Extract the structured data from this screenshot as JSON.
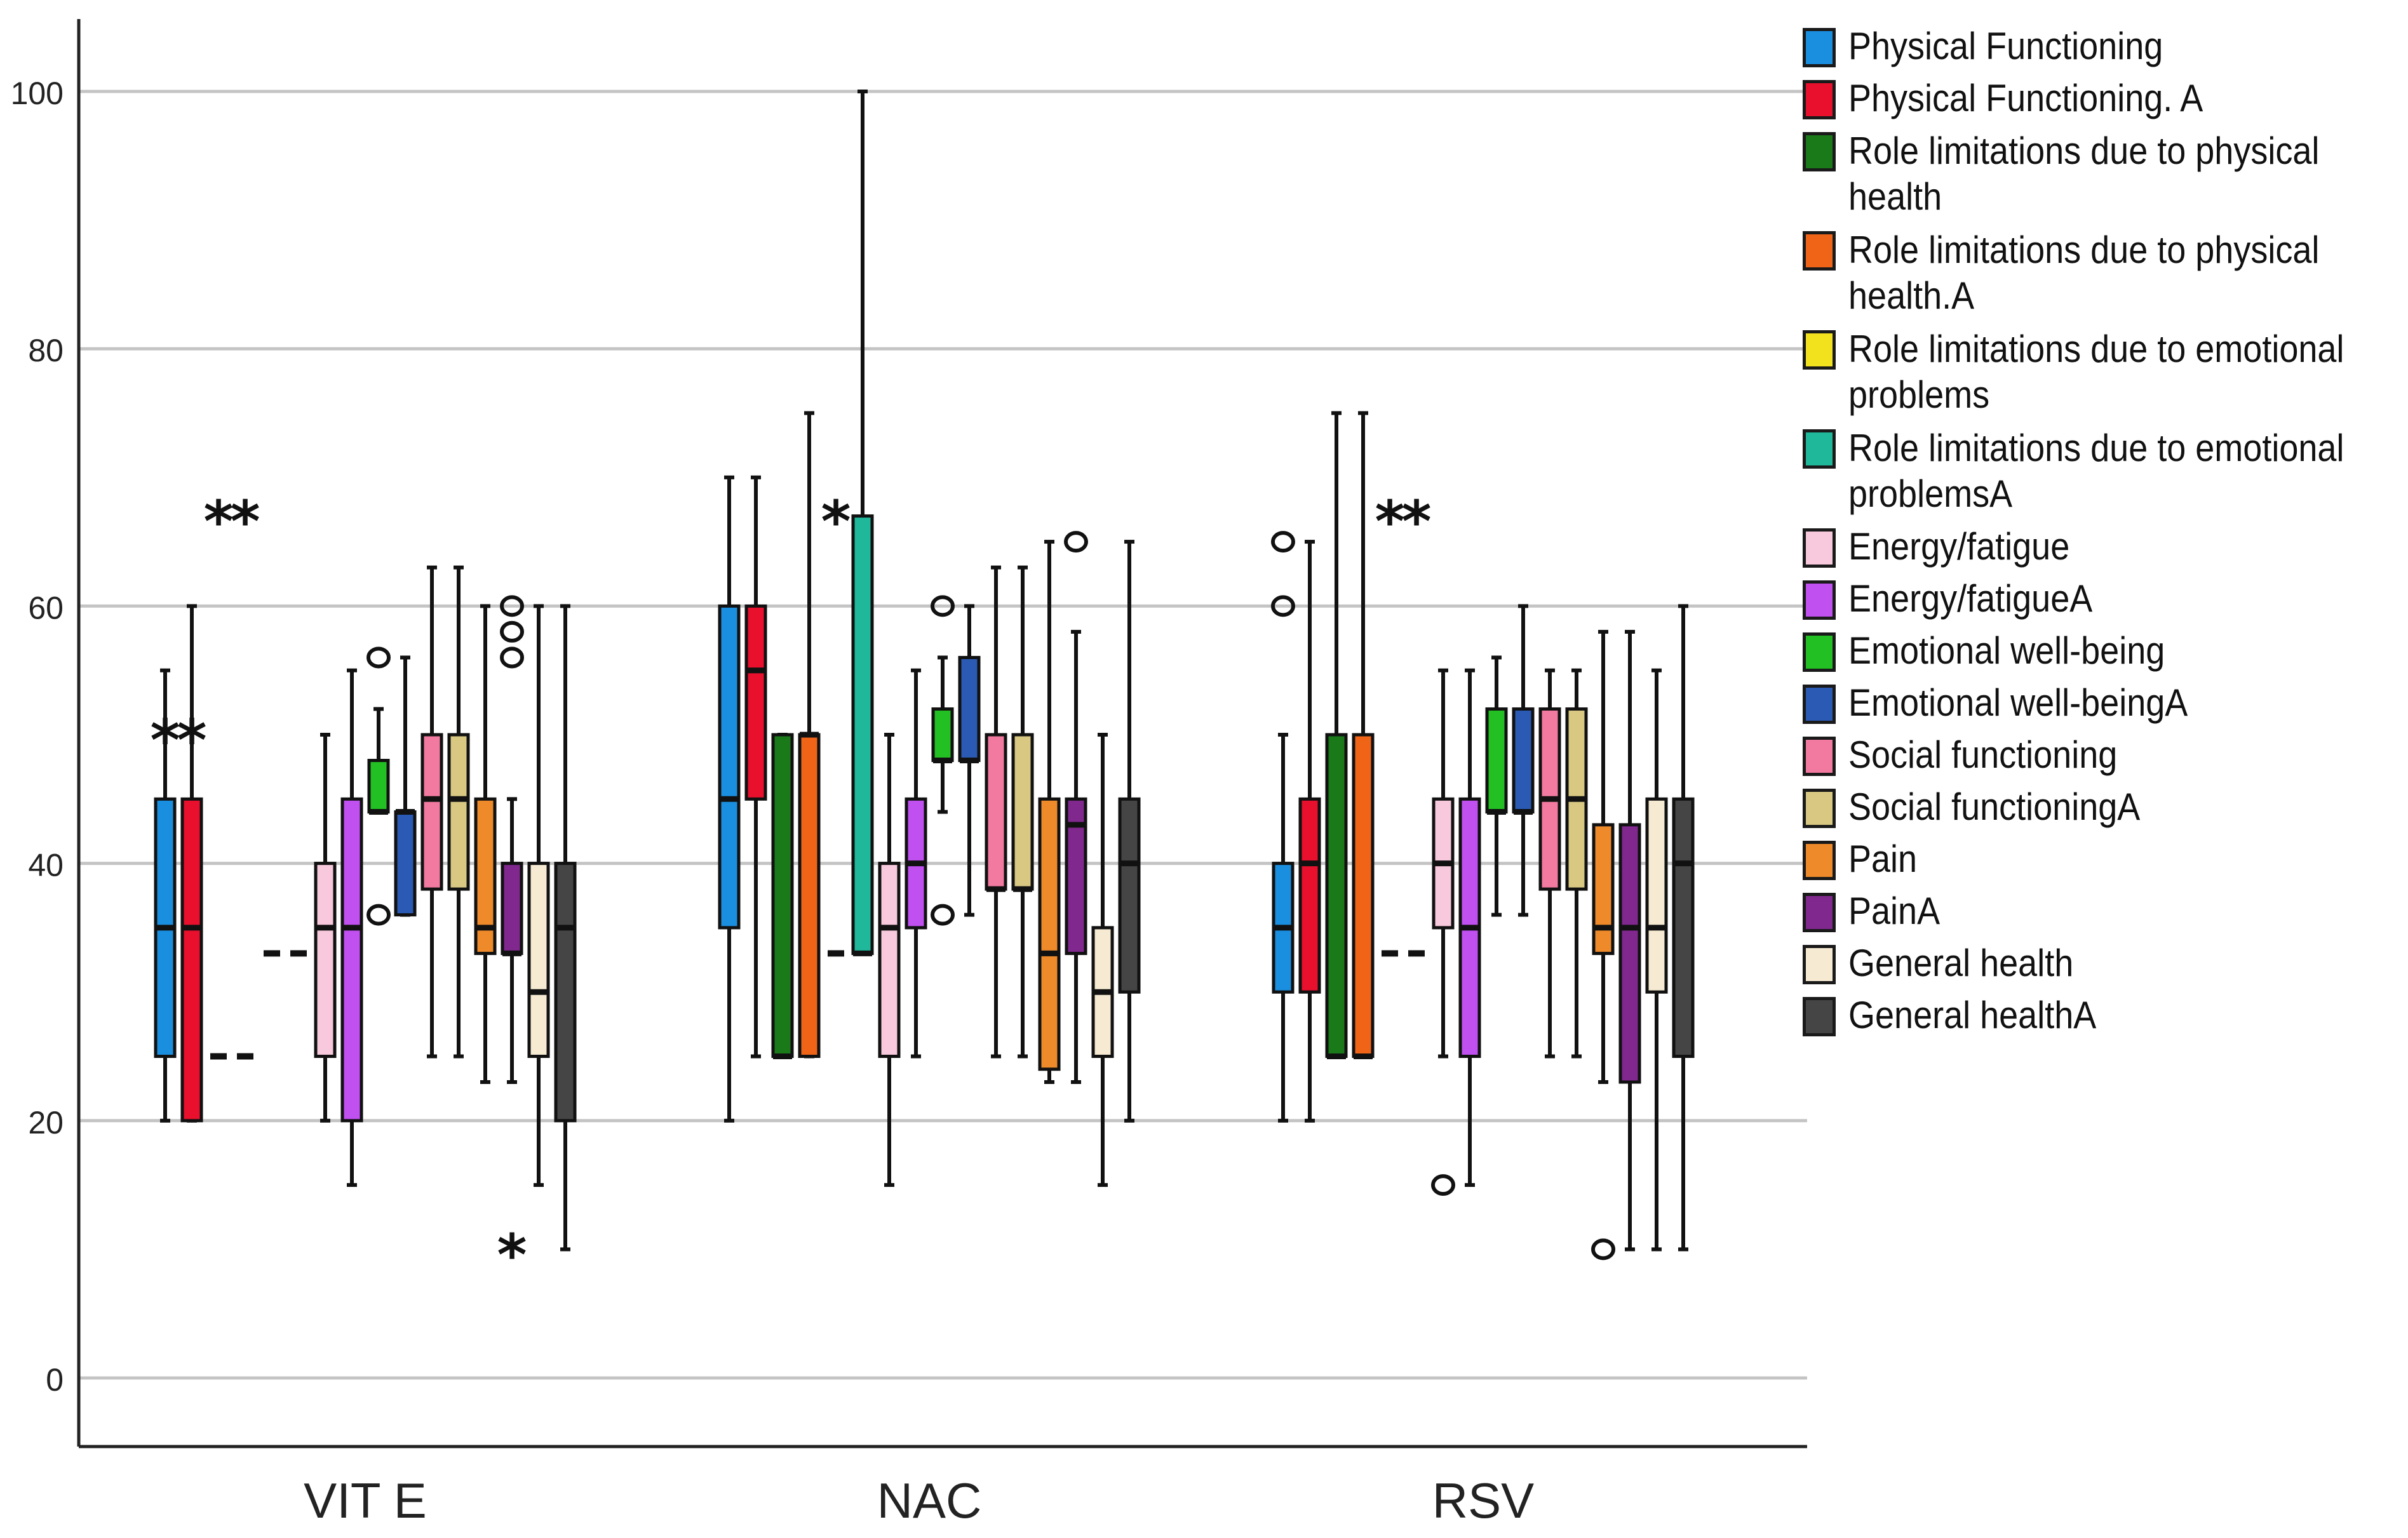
{
  "chart_data": {
    "type": "box",
    "title": "",
    "xlabel": "",
    "ylabel": "",
    "ylim": [
      -5,
      105
    ],
    "yticks": [
      0,
      20,
      40,
      60,
      80,
      100
    ],
    "grid": true,
    "legend_position": "right",
    "categories": [
      "VIT E",
      "NAC",
      "RSV"
    ],
    "series": [
      {
        "name": "Physical Functioning",
        "color": "#1a8fe0"
      },
      {
        "name": "Physical Functioning. A",
        "color": "#e8102c"
      },
      {
        "name": "Role limitations due to physical health",
        "color": "#1a7a1a"
      },
      {
        "name": "Role limitations due to physical health.A",
        "color": "#f06418"
      },
      {
        "name": "Role limitations due to emotional problems",
        "color": "#f2e21e"
      },
      {
        "name": "Role limitations due to emotional problemsA",
        "color": "#20b89a"
      },
      {
        "name": "Energy/fatigue",
        "color": "#f8c8dc"
      },
      {
        "name": "Energy/fatigueA",
        "color": "#c050f0"
      },
      {
        "name": "Emotional well-being",
        "color": "#22c022"
      },
      {
        "name": "Emotional well-beingA",
        "color": "#2a5ab4"
      },
      {
        "name": "Social functioning",
        "color": "#f27aa0"
      },
      {
        "name": "Social functioningA",
        "color": "#d8c882"
      },
      {
        "name": "Pain",
        "color": "#ee8a2a"
      },
      {
        "name": "PainA",
        "color": "#80288e"
      },
      {
        "name": "General health",
        "color": "#f6ead2"
      },
      {
        "name": "General healthA",
        "color": "#454545"
      }
    ],
    "boxes": [
      {
        "group": 0,
        "series": 0,
        "min": 20,
        "q1": 25,
        "median": 35,
        "q3": 45,
        "max": 55
      },
      {
        "group": 0,
        "series": 1,
        "min": 20,
        "q1": 20,
        "median": 35,
        "q3": 45,
        "max": 60
      },
      {
        "group": 0,
        "series": 2,
        "flat": 25
      },
      {
        "group": 0,
        "series": 3,
        "flat": 25
      },
      {
        "group": 0,
        "series": 4,
        "flat": 33
      },
      {
        "group": 0,
        "series": 5,
        "flat": 33
      },
      {
        "group": 0,
        "series": 6,
        "min": 20,
        "q1": 25,
        "median": 35,
        "q3": 40,
        "max": 50
      },
      {
        "group": 0,
        "series": 7,
        "min": 15,
        "q1": 20,
        "median": 35,
        "q3": 45,
        "max": 55
      },
      {
        "group": 0,
        "series": 8,
        "min": 44,
        "q1": 44,
        "median": 44,
        "q3": 48,
        "max": 52
      },
      {
        "group": 0,
        "series": 9,
        "min": 36,
        "q1": 36,
        "median": 44,
        "q3": 44,
        "max": 56
      },
      {
        "group": 0,
        "series": 10,
        "min": 25,
        "q1": 38,
        "median": 45,
        "q3": 50,
        "max": 63
      },
      {
        "group": 0,
        "series": 11,
        "min": 25,
        "q1": 38,
        "median": 45,
        "q3": 50,
        "max": 63
      },
      {
        "group": 0,
        "series": 12,
        "min": 23,
        "q1": 33,
        "median": 35,
        "q3": 45,
        "max": 60
      },
      {
        "group": 0,
        "series": 13,
        "min": 23,
        "q1": 33,
        "median": 33,
        "q3": 40,
        "max": 45
      },
      {
        "group": 0,
        "series": 14,
        "min": 15,
        "q1": 25,
        "median": 30,
        "q3": 40,
        "max": 60
      },
      {
        "group": 0,
        "series": 15,
        "min": 10,
        "q1": 20,
        "median": 35,
        "q3": 40,
        "max": 60
      },
      {
        "group": 1,
        "series": 0,
        "min": 20,
        "q1": 35,
        "median": 45,
        "q3": 60,
        "max": 70
      },
      {
        "group": 1,
        "series": 1,
        "min": 25,
        "q1": 45,
        "median": 55,
        "q3": 60,
        "max": 70
      },
      {
        "group": 1,
        "series": 2,
        "min": 25,
        "q1": 25,
        "median": 25,
        "q3": 50,
        "max": 50
      },
      {
        "group": 1,
        "series": 3,
        "min": 25,
        "q1": 25,
        "median": 50,
        "q3": 50,
        "max": 75
      },
      {
        "group": 1,
        "series": 4,
        "flat": 33
      },
      {
        "group": 1,
        "series": 5,
        "min": 33,
        "q1": 33,
        "median": 33,
        "q3": 67,
        "max": 100
      },
      {
        "group": 1,
        "series": 6,
        "min": 15,
        "q1": 25,
        "median": 35,
        "q3": 40,
        "max": 50
      },
      {
        "group": 1,
        "series": 7,
        "min": 25,
        "q1": 35,
        "median": 40,
        "q3": 45,
        "max": 55
      },
      {
        "group": 1,
        "series": 8,
        "min": 44,
        "q1": 48,
        "median": 48,
        "q3": 52,
        "max": 56
      },
      {
        "group": 1,
        "series": 9,
        "min": 36,
        "q1": 48,
        "median": 48,
        "q3": 56,
        "max": 60
      },
      {
        "group": 1,
        "series": 10,
        "min": 25,
        "q1": 38,
        "median": 38,
        "q3": 50,
        "max": 63
      },
      {
        "group": 1,
        "series": 11,
        "min": 25,
        "q1": 38,
        "median": 38,
        "q3": 50,
        "max": 63
      },
      {
        "group": 1,
        "series": 12,
        "min": 23,
        "q1": 24,
        "median": 33,
        "q3": 45,
        "max": 65
      },
      {
        "group": 1,
        "series": 13,
        "min": 23,
        "q1": 33,
        "median": 43,
        "q3": 45,
        "max": 58
      },
      {
        "group": 1,
        "series": 14,
        "min": 15,
        "q1": 25,
        "median": 30,
        "q3": 35,
        "max": 50
      },
      {
        "group": 1,
        "series": 15,
        "min": 20,
        "q1": 30,
        "median": 40,
        "q3": 45,
        "max": 65
      },
      {
        "group": 2,
        "series": 0,
        "min": 20,
        "q1": 30,
        "median": 35,
        "q3": 40,
        "max": 50
      },
      {
        "group": 2,
        "series": 1,
        "min": 20,
        "q1": 30,
        "median": 40,
        "q3": 45,
        "max": 65
      },
      {
        "group": 2,
        "series": 2,
        "min": 25,
        "q1": 25,
        "median": 25,
        "q3": 50,
        "max": 75
      },
      {
        "group": 2,
        "series": 3,
        "min": 25,
        "q1": 25,
        "median": 25,
        "q3": 50,
        "max": 75
      },
      {
        "group": 2,
        "series": 4,
        "flat": 33
      },
      {
        "group": 2,
        "series": 5,
        "flat": 33
      },
      {
        "group": 2,
        "series": 6,
        "min": 25,
        "q1": 35,
        "median": 40,
        "q3": 45,
        "max": 55
      },
      {
        "group": 2,
        "series": 7,
        "min": 15,
        "q1": 25,
        "median": 35,
        "q3": 45,
        "max": 55
      },
      {
        "group": 2,
        "series": 8,
        "min": 36,
        "q1": 44,
        "median": 44,
        "q3": 52,
        "max": 56
      },
      {
        "group": 2,
        "series": 9,
        "min": 36,
        "q1": 44,
        "median": 44,
        "q3": 52,
        "max": 60
      },
      {
        "group": 2,
        "series": 10,
        "min": 25,
        "q1": 38,
        "median": 45,
        "q3": 52,
        "max": 55
      },
      {
        "group": 2,
        "series": 11,
        "min": 25,
        "q1": 38,
        "median": 45,
        "q3": 52,
        "max": 55
      },
      {
        "group": 2,
        "series": 12,
        "min": 23,
        "q1": 33,
        "median": 35,
        "q3": 43,
        "max": 58
      },
      {
        "group": 2,
        "series": 13,
        "min": 10,
        "q1": 23,
        "median": 35,
        "q3": 43,
        "max": 58
      },
      {
        "group": 2,
        "series": 14,
        "min": 10,
        "q1": 30,
        "median": 35,
        "q3": 45,
        "max": 55
      },
      {
        "group": 2,
        "series": 15,
        "min": 10,
        "q1": 25,
        "median": 40,
        "q3": 45,
        "max": 60
      }
    ],
    "outliers": [
      {
        "group": 0,
        "series": 2,
        "value": 67,
        "marker": "*"
      },
      {
        "group": 0,
        "series": 3,
        "value": 67,
        "marker": "*"
      },
      {
        "group": 0,
        "series": 0,
        "value": 50,
        "marker": "*",
        "offset": 2
      },
      {
        "group": 0,
        "series": 1,
        "value": 50,
        "marker": "*",
        "offset": 2
      },
      {
        "group": 0,
        "series": 8,
        "value": 56,
        "marker": "o"
      },
      {
        "group": 0,
        "series": 8,
        "value": 36,
        "marker": "o"
      },
      {
        "group": 0,
        "series": 13,
        "value": 60,
        "marker": "o"
      },
      {
        "group": 0,
        "series": 13,
        "value": 58,
        "marker": "o"
      },
      {
        "group": 0,
        "series": 13,
        "value": 56,
        "marker": "o"
      },
      {
        "group": 0,
        "series": 13,
        "value": 10,
        "marker": "*"
      },
      {
        "group": 1,
        "series": 4,
        "value": 67,
        "marker": "*"
      },
      {
        "group": 1,
        "series": 8,
        "value": 60,
        "marker": "o"
      },
      {
        "group": 1,
        "series": 8,
        "value": 36,
        "marker": "o"
      },
      {
        "group": 1,
        "series": 13,
        "value": 65,
        "marker": "o"
      },
      {
        "group": 2,
        "series": 0,
        "value": 65,
        "marker": "o"
      },
      {
        "group": 2,
        "series": 0,
        "value": 60,
        "marker": "o"
      },
      {
        "group": 2,
        "series": 4,
        "value": 67,
        "marker": "*"
      },
      {
        "group": 2,
        "series": 5,
        "value": 67,
        "marker": "*"
      },
      {
        "group": 2,
        "series": 6,
        "value": 15,
        "marker": "o"
      },
      {
        "group": 2,
        "series": 12,
        "value": 10,
        "marker": "o"
      }
    ]
  },
  "legend": {
    "items": [
      {
        "label": "Physical Functioning",
        "color": "#1a8fe0"
      },
      {
        "label": "Physical Functioning. A",
        "color": "#e8102c"
      },
      {
        "label": "Role limitations due to physical health",
        "color": "#1a7a1a"
      },
      {
        "label": "Role limitations due to physical health.A",
        "color": "#f06418"
      },
      {
        "label": "Role limitations due to emotional problems",
        "color": "#f2e21e"
      },
      {
        "label": "Role limitations due to emotional problemsA",
        "color": "#20b89a"
      },
      {
        "label": "Energy/fatigue",
        "color": "#f8c8dc"
      },
      {
        "label": "Energy/fatigueA",
        "color": "#c050f0"
      },
      {
        "label": "Emotional well-being",
        "color": "#22c022"
      },
      {
        "label": "Emotional well-beingA",
        "color": "#2a5ab4"
      },
      {
        "label": "Social functioning",
        "color": "#f27aa0"
      },
      {
        "label": "Social functioningA",
        "color": "#d8c882"
      },
      {
        "label": "Pain",
        "color": "#ee8a2a"
      },
      {
        "label": "PainA",
        "color": "#80288e"
      },
      {
        "label": "General health",
        "color": "#f6ead2"
      },
      {
        "label": "General healthA",
        "color": "#454545"
      }
    ]
  }
}
